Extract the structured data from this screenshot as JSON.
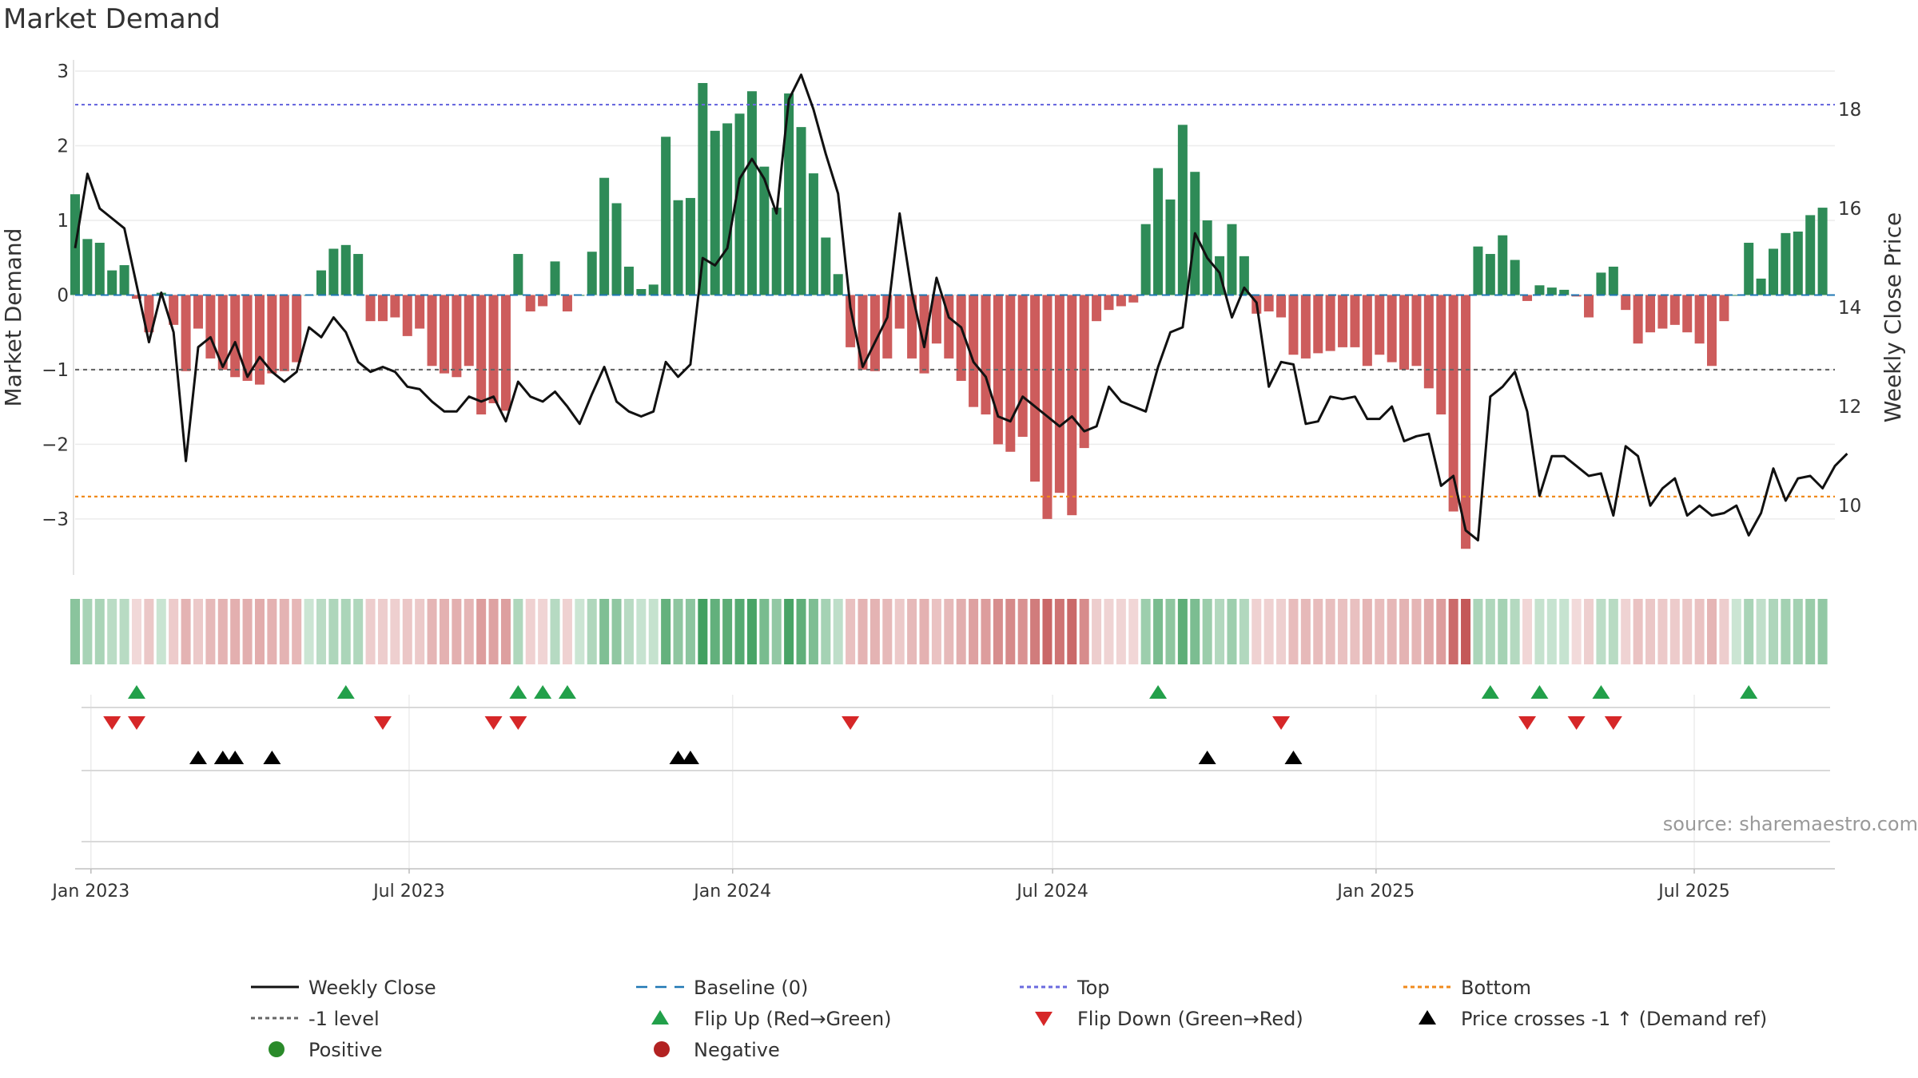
{
  "chart_data": {
    "type": "bar+line",
    "title": "Market Demand",
    "ylabel_left": "Market Demand",
    "ylabel_right": "Weekly Close Price",
    "source": "source: sharemaestro.com",
    "ylim_left": [
      -3.75,
      3.15
    ],
    "ylim_right": [
      8.6,
      19.0
    ],
    "yticks_left": [
      3,
      2,
      1,
      0,
      -1,
      -2,
      -3
    ],
    "yticks_left_labels": [
      "3",
      "2",
      "1",
      "0",
      "−1",
      "−2",
      "−3"
    ],
    "yticks_right": [
      10,
      12,
      14,
      16,
      18
    ],
    "yticks_right_labels": [
      "10",
      "12",
      "14",
      "16",
      "18"
    ],
    "x_start": "2022-12-23",
    "x_end": "2025-09-19",
    "xticks": [
      {
        "date": "2023-01-01",
        "label": "Jan 2023"
      },
      {
        "date": "2023-07-01",
        "label": "Jul 2023"
      },
      {
        "date": "2024-01-01",
        "label": "Jan 2024"
      },
      {
        "date": "2024-07-01",
        "label": "Jul 2024"
      },
      {
        "date": "2025-01-01",
        "label": "Jan 2025"
      },
      {
        "date": "2025-07-01",
        "label": "Jul 2025"
      }
    ],
    "reference_lines": {
      "top": 2.55,
      "bottom": -2.7,
      "minus_one": -1,
      "baseline": 0
    },
    "demand_start": "2022-12-23",
    "demand": [
      1.35,
      0.75,
      0.7,
      0.33,
      0.4,
      -0.05,
      -0.5,
      0.03,
      -0.4,
      -1.02,
      -0.45,
      -0.85,
      -1.0,
      -1.1,
      -1.15,
      -1.2,
      -1.05,
      -1.02,
      -0.9,
      0.0,
      0.33,
      0.62,
      0.67,
      0.55,
      -0.35,
      -0.35,
      -0.3,
      -0.55,
      -0.45,
      -0.95,
      -1.05,
      -1.1,
      -0.95,
      -1.6,
      -1.45,
      -1.55,
      0.55,
      -0.22,
      -0.15,
      0.45,
      -0.22,
      0.0,
      0.58,
      1.57,
      1.23,
      0.38,
      0.08,
      0.14,
      2.12,
      1.27,
      1.3,
      2.84,
      2.2,
      2.3,
      2.43,
      2.73,
      1.72,
      1.17,
      2.7,
      2.25,
      1.63,
      0.77,
      0.28,
      -0.7,
      -1.0,
      -1.02,
      -0.85,
      -0.45,
      -0.85,
      -1.05,
      -0.65,
      -0.85,
      -1.15,
      -1.5,
      -1.6,
      -2.0,
      -2.1,
      -1.9,
      -2.5,
      -3.0,
      -2.65,
      -2.95,
      -2.05,
      -0.35,
      -0.2,
      -0.15,
      -0.1,
      0.95,
      1.7,
      1.28,
      2.28,
      1.65,
      1.0,
      0.52,
      0.95,
      0.52,
      -0.25,
      -0.22,
      -0.3,
      -0.8,
      -0.85,
      -0.78,
      -0.75,
      -0.7,
      -0.7,
      -0.95,
      -0.8,
      -0.9,
      -1.0,
      -0.95,
      -1.25,
      -1.6,
      -2.9,
      -3.4,
      0.65,
      0.55,
      0.8,
      0.47,
      -0.08,
      0.13,
      0.1,
      0.07,
      -0.02,
      -0.3,
      0.3,
      0.38,
      -0.2,
      -0.65,
      -0.5,
      -0.45,
      -0.4,
      -0.5,
      -0.65,
      -0.95,
      -0.35,
      0.0,
      0.7,
      0.22,
      0.62,
      0.83,
      0.85,
      1.07,
      1.17
    ],
    "weekly_close": [
      {
        "date": "2022-12-23",
        "v": 15.2
      },
      {
        "date": "2022-12-30",
        "v": 16.7
      },
      {
        "date": "2023-01-06",
        "v": 16.0
      },
      {
        "date": "2023-01-13",
        "v": 15.8
      },
      {
        "date": "2023-01-20",
        "v": 15.6
      },
      {
        "date": "2023-02-03",
        "v": 13.3
      },
      {
        "date": "2023-02-10",
        "v": 14.3
      },
      {
        "date": "2023-02-17",
        "v": 13.5
      },
      {
        "date": "2023-02-24",
        "v": 10.9
      },
      {
        "date": "2023-03-03",
        "v": 13.2
      },
      {
        "date": "2023-03-10",
        "v": 13.4
      },
      {
        "date": "2023-03-17",
        "v": 12.8
      },
      {
        "date": "2023-03-24",
        "v": 13.3
      },
      {
        "date": "2023-03-31",
        "v": 12.6
      },
      {
        "date": "2023-04-07",
        "v": 13.0
      },
      {
        "date": "2023-04-14",
        "v": 12.7
      },
      {
        "date": "2023-04-21",
        "v": 12.5
      },
      {
        "date": "2023-04-28",
        "v": 12.7
      },
      {
        "date": "2023-05-05",
        "v": 13.6
      },
      {
        "date": "2023-05-12",
        "v": 13.4
      },
      {
        "date": "2023-05-19",
        "v": 13.8
      },
      {
        "date": "2023-05-26",
        "v": 13.5
      },
      {
        "date": "2023-06-02",
        "v": 12.9
      },
      {
        "date": "2023-06-09",
        "v": 12.7
      },
      {
        "date": "2023-06-16",
        "v": 12.8
      },
      {
        "date": "2023-06-23",
        "v": 12.7
      },
      {
        "date": "2023-06-30",
        "v": 12.4
      },
      {
        "date": "2023-07-07",
        "v": 12.35
      },
      {
        "date": "2023-07-14",
        "v": 12.1
      },
      {
        "date": "2023-07-21",
        "v": 11.9
      },
      {
        "date": "2023-07-28",
        "v": 11.9
      },
      {
        "date": "2023-08-04",
        "v": 12.2
      },
      {
        "date": "2023-08-11",
        "v": 12.1
      },
      {
        "date": "2023-08-18",
        "v": 12.2
      },
      {
        "date": "2023-08-25",
        "v": 11.7
      },
      {
        "date": "2023-09-01",
        "v": 12.5
      },
      {
        "date": "2023-09-08",
        "v": 12.2
      },
      {
        "date": "2023-09-15",
        "v": 12.1
      },
      {
        "date": "2023-09-22",
        "v": 12.3
      },
      {
        "date": "2023-09-29",
        "v": 12.0
      },
      {
        "date": "2023-10-06",
        "v": 11.65
      },
      {
        "date": "2023-10-13",
        "v": 12.25
      },
      {
        "date": "2023-10-20",
        "v": 12.8
      },
      {
        "date": "2023-10-27",
        "v": 12.1
      },
      {
        "date": "2023-11-03",
        "v": 11.9
      },
      {
        "date": "2023-11-10",
        "v": 11.8
      },
      {
        "date": "2023-11-17",
        "v": 11.9
      },
      {
        "date": "2023-11-24",
        "v": 12.9
      },
      {
        "date": "2023-12-01",
        "v": 12.6
      },
      {
        "date": "2023-12-08",
        "v": 12.85
      },
      {
        "date": "2023-12-15",
        "v": 15.0
      },
      {
        "date": "2023-12-22",
        "v": 14.85
      },
      {
        "date": "2023-12-29",
        "v": 15.2
      },
      {
        "date": "2024-01-05",
        "v": 16.6
      },
      {
        "date": "2024-01-12",
        "v": 17.0
      },
      {
        "date": "2024-01-19",
        "v": 16.6
      },
      {
        "date": "2024-01-26",
        "v": 15.9
      },
      {
        "date": "2024-02-02",
        "v": 18.2
      },
      {
        "date": "2024-02-09",
        "v": 18.7
      },
      {
        "date": "2024-02-16",
        "v": 18.0
      },
      {
        "date": "2024-02-23",
        "v": 17.1
      },
      {
        "date": "2024-03-01",
        "v": 16.3
      },
      {
        "date": "2024-03-08",
        "v": 14.0
      },
      {
        "date": "2024-03-15",
        "v": 12.8
      },
      {
        "date": "2024-03-22",
        "v": 13.3
      },
      {
        "date": "2024-03-29",
        "v": 13.8
      },
      {
        "date": "2024-04-05",
        "v": 15.9
      },
      {
        "date": "2024-04-12",
        "v": 14.3
      },
      {
        "date": "2024-04-19",
        "v": 13.2
      },
      {
        "date": "2024-04-26",
        "v": 14.6
      },
      {
        "date": "2024-05-03",
        "v": 13.8
      },
      {
        "date": "2024-05-10",
        "v": 13.6
      },
      {
        "date": "2024-05-17",
        "v": 12.9
      },
      {
        "date": "2024-05-24",
        "v": 12.6
      },
      {
        "date": "2024-05-31",
        "v": 11.8
      },
      {
        "date": "2024-06-07",
        "v": 11.7
      },
      {
        "date": "2024-06-14",
        "v": 12.2
      },
      {
        "date": "2024-06-21",
        "v": 12.0
      },
      {
        "date": "2024-06-28",
        "v": 11.8
      },
      {
        "date": "2024-07-05",
        "v": 11.6
      },
      {
        "date": "2024-07-12",
        "v": 11.8
      },
      {
        "date": "2024-07-19",
        "v": 11.5
      },
      {
        "date": "2024-07-26",
        "v": 11.6
      },
      {
        "date": "2024-08-02",
        "v": 12.4
      },
      {
        "date": "2024-08-09",
        "v": 12.1
      },
      {
        "date": "2024-08-16",
        "v": 12.0
      },
      {
        "date": "2024-08-23",
        "v": 11.9
      },
      {
        "date": "2024-08-30",
        "v": 12.8
      },
      {
        "date": "2024-09-06",
        "v": 13.5
      },
      {
        "date": "2024-09-13",
        "v": 13.6
      },
      {
        "date": "2024-09-20",
        "v": 15.5
      },
      {
        "date": "2024-09-27",
        "v": 15.0
      },
      {
        "date": "2024-10-04",
        "v": 14.7
      },
      {
        "date": "2024-10-11",
        "v": 13.8
      },
      {
        "date": "2024-10-18",
        "v": 14.4
      },
      {
        "date": "2024-10-25",
        "v": 14.1
      },
      {
        "date": "2024-11-01",
        "v": 12.4
      },
      {
        "date": "2024-11-08",
        "v": 12.9
      },
      {
        "date": "2024-11-15",
        "v": 12.85
      },
      {
        "date": "2024-11-22",
        "v": 11.65
      },
      {
        "date": "2024-11-29",
        "v": 11.7
      },
      {
        "date": "2024-12-06",
        "v": 12.2
      },
      {
        "date": "2024-12-13",
        "v": 12.15
      },
      {
        "date": "2024-12-20",
        "v": 12.2
      },
      {
        "date": "2024-12-27",
        "v": 11.75
      },
      {
        "date": "2025-01-03",
        "v": 11.75
      },
      {
        "date": "2025-01-10",
        "v": 12.0
      },
      {
        "date": "2025-01-17",
        "v": 11.3
      },
      {
        "date": "2025-01-24",
        "v": 11.4
      },
      {
        "date": "2025-01-31",
        "v": 11.45
      },
      {
        "date": "2025-02-07",
        "v": 10.4
      },
      {
        "date": "2025-02-14",
        "v": 10.6
      },
      {
        "date": "2025-02-21",
        "v": 9.5
      },
      {
        "date": "2025-02-28",
        "v": 9.3
      },
      {
        "date": "2025-03-07",
        "v": 12.2
      },
      {
        "date": "2025-03-14",
        "v": 12.4
      },
      {
        "date": "2025-03-21",
        "v": 12.7
      },
      {
        "date": "2025-03-28",
        "v": 11.9
      },
      {
        "date": "2025-04-04",
        "v": 10.2
      },
      {
        "date": "2025-04-11",
        "v": 11.0
      },
      {
        "date": "2025-04-18",
        "v": 11.0
      },
      {
        "date": "2025-04-25",
        "v": 10.8
      },
      {
        "date": "2025-05-02",
        "v": 10.6
      },
      {
        "date": "2025-05-09",
        "v": 10.65
      },
      {
        "date": "2025-05-16",
        "v": 9.8
      },
      {
        "date": "2025-05-23",
        "v": 11.2
      },
      {
        "date": "2025-05-30",
        "v": 11.0
      },
      {
        "date": "2025-06-06",
        "v": 10.0
      },
      {
        "date": "2025-06-13",
        "v": 10.35
      },
      {
        "date": "2025-06-20",
        "v": 10.55
      },
      {
        "date": "2025-06-27",
        "v": 9.8
      },
      {
        "date": "2025-07-04",
        "v": 10.0
      },
      {
        "date": "2025-07-11",
        "v": 9.8
      },
      {
        "date": "2025-07-18",
        "v": 9.85
      },
      {
        "date": "2025-07-25",
        "v": 10.0
      },
      {
        "date": "2025-08-01",
        "v": 9.4
      },
      {
        "date": "2025-08-08",
        "v": 9.85
      },
      {
        "date": "2025-08-15",
        "v": 10.75
      },
      {
        "date": "2025-08-22",
        "v": 10.1
      },
      {
        "date": "2025-08-29",
        "v": 10.55
      },
      {
        "date": "2025-09-05",
        "v": 10.6
      },
      {
        "date": "2025-09-12",
        "v": 10.35
      },
      {
        "date": "2025-09-19",
        "v": 10.8
      },
      {
        "date": "2025-09-26",
        "v": 11.05
      }
    ],
    "flip_up_dates": [
      "2023-01-27",
      "2023-05-26",
      "2023-09-01",
      "2023-09-15",
      "2023-09-29",
      "2024-08-30",
      "2025-03-07",
      "2025-04-04",
      "2025-05-09",
      "2025-08-01"
    ],
    "flip_down_dates": [
      "2023-01-13",
      "2023-01-27",
      "2023-06-16",
      "2023-08-18",
      "2023-09-01",
      "2024-03-08",
      "2024-11-08",
      "2025-03-28",
      "2025-04-25",
      "2025-05-16"
    ],
    "price_cross_dates": [
      "2023-03-03",
      "2023-03-17",
      "2023-03-24",
      "2023-04-14",
      "2023-12-01",
      "2023-12-08",
      "2024-09-27",
      "2024-11-15"
    ],
    "legend": [
      {
        "label": "Weekly Close",
        "marker": "line-solid",
        "color": "#111111"
      },
      {
        "label": "Baseline (0)",
        "marker": "line-dashed",
        "color": "#1f77b4"
      },
      {
        "label": "Top",
        "marker": "line-dotted",
        "color": "#6a6adf"
      },
      {
        "label": "Bottom",
        "marker": "line-dotted",
        "color": "#f08a1c"
      },
      {
        "label": "-1 level",
        "marker": "line-dotted",
        "color": "#666666"
      },
      {
        "label": "Flip Up (Red→Green)",
        "marker": "triangle-up",
        "color": "#22a04a"
      },
      {
        "label": "Flip Down (Green→Red)",
        "marker": "triangle-down",
        "color": "#d62728"
      },
      {
        "label": "Price crosses -1 ↑ (Demand ref)",
        "marker": "triangle-up",
        "color": "#000000"
      },
      {
        "label": "Positive",
        "marker": "circle",
        "color": "#2a8a2a"
      },
      {
        "label": "Negative",
        "marker": "circle",
        "color": "#b22222"
      }
    ],
    "colors": {
      "positive_bar": "#2e8b57",
      "negative_bar": "#cd5c5c"
    }
  }
}
